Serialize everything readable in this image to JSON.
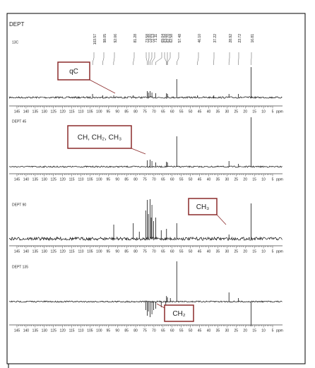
{
  "title": "DEPT",
  "axis": {
    "labels": [
      "145",
      "140",
      "135",
      "130",
      "125",
      "120",
      "115",
      "110",
      "105",
      "100",
      "95",
      "90",
      "85",
      "80",
      "75",
      "70",
      "65",
      "60",
      "55",
      "50",
      "45",
      "40",
      "35",
      "30",
      "25",
      "20",
      "15",
      "10",
      "5"
    ],
    "unit": "ppm"
  },
  "panels": [
    {
      "label": "13C",
      "peak_labels": [
        "103.57",
        "98.05",
        "92.06",
        "81.28",
        "73.58",
        "73.00",
        "72.13",
        "71.11",
        "69.04",
        "63.08",
        "62.70",
        "62.58",
        "57.48",
        "46.10",
        "37.22",
        "28.92",
        "23.72",
        "16.81"
      ]
    },
    {
      "label": "DEPT 45"
    },
    {
      "label": "DEPT 90"
    },
    {
      "label": "DEPT 135"
    }
  ],
  "annotations": [
    "qC",
    "CH, CH₂, CH₃",
    "CH₃",
    "CH₂"
  ]
}
